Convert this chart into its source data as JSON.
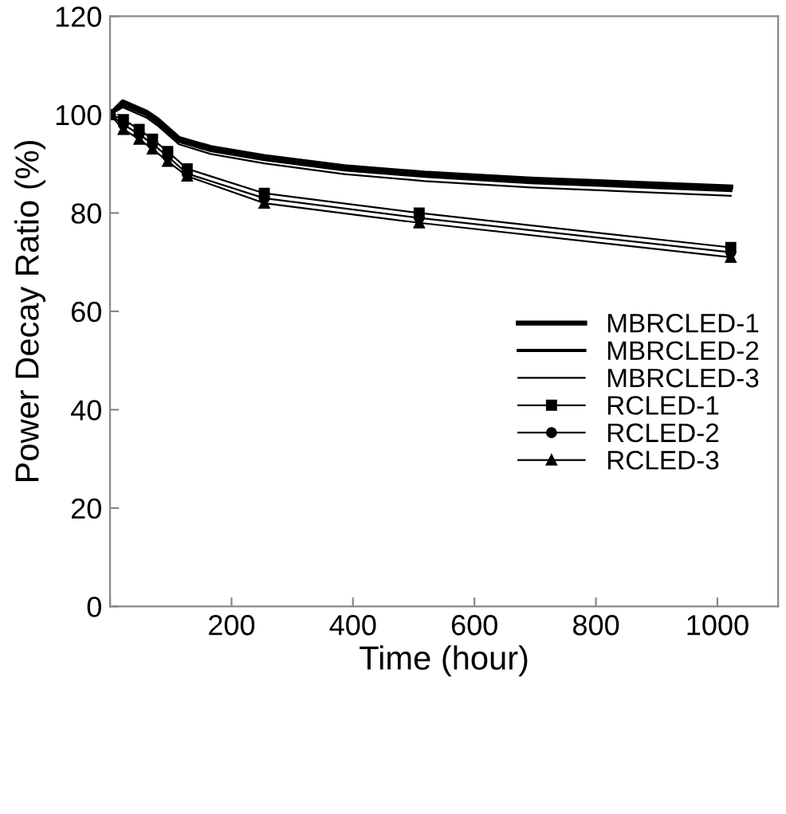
{
  "chart_data": {
    "type": "line",
    "xlabel": "Time (hour)",
    "ylabel": "Power Decay Ratio (%)",
    "xlim": [
      0,
      1100
    ],
    "xticks": [
      {
        "value": 0,
        "label": null
      },
      200,
      400,
      600,
      800,
      1000
    ],
    "ylim": [
      0,
      120
    ],
    "yticks": [
      0,
      20,
      40,
      60,
      80,
      100,
      120
    ],
    "grid": false,
    "legend": "right",
    "series": [
      {
        "name": "MBRCLED-1",
        "color": "#000000",
        "marker": "none",
        "x": [
          0,
          21,
          60,
          78,
          113,
          166,
          254,
          386,
          518,
          693,
          1022
        ],
        "values": [
          100,
          102.6,
          100.5,
          99,
          95.2,
          93.3,
          91.5,
          89.4,
          88.1,
          86.9,
          85.3
        ]
      },
      {
        "name": "MBRCLED-2",
        "color": "#000000",
        "marker": "none",
        "x": [
          0,
          21,
          60,
          78,
          113,
          166,
          254,
          386,
          518,
          693,
          1022
        ],
        "values": [
          100,
          102,
          100,
          98.4,
          94.6,
          92.7,
          90.9,
          88.8,
          87.5,
          86.2,
          84.6
        ]
      },
      {
        "name": "MBRCLED-3",
        "color": "#000000",
        "marker": "none",
        "x": [
          0,
          21,
          60,
          78,
          113,
          166,
          254,
          386,
          518,
          693,
          1022
        ],
        "values": [
          100,
          101.5,
          99.4,
          97.8,
          94,
          92,
          90.1,
          87.9,
          86.5,
          85.2,
          83.5
        ]
      },
      {
        "name": "RCLED-1",
        "color": "#000000",
        "marker": "square",
        "x": [
          0,
          22,
          48,
          70,
          95,
          127,
          254,
          509,
          1022
        ],
        "values": [
          100,
          99,
          97,
          95,
          92.5,
          89,
          84,
          80,
          73
        ]
      },
      {
        "name": "RCLED-2",
        "color": "#000000",
        "marker": "circle",
        "x": [
          0,
          22,
          48,
          70,
          95,
          127,
          254,
          509,
          1022
        ],
        "values": [
          100,
          98,
          96,
          94,
          91.5,
          88,
          83,
          79,
          72
        ]
      },
      {
        "name": "RCLED-3",
        "color": "#000000",
        "marker": "triangle",
        "x": [
          0,
          22,
          48,
          70,
          95,
          127,
          254,
          509,
          1022
        ],
        "values": [
          100,
          97,
          95,
          93,
          90.5,
          87.5,
          82,
          78,
          71
        ]
      }
    ]
  }
}
